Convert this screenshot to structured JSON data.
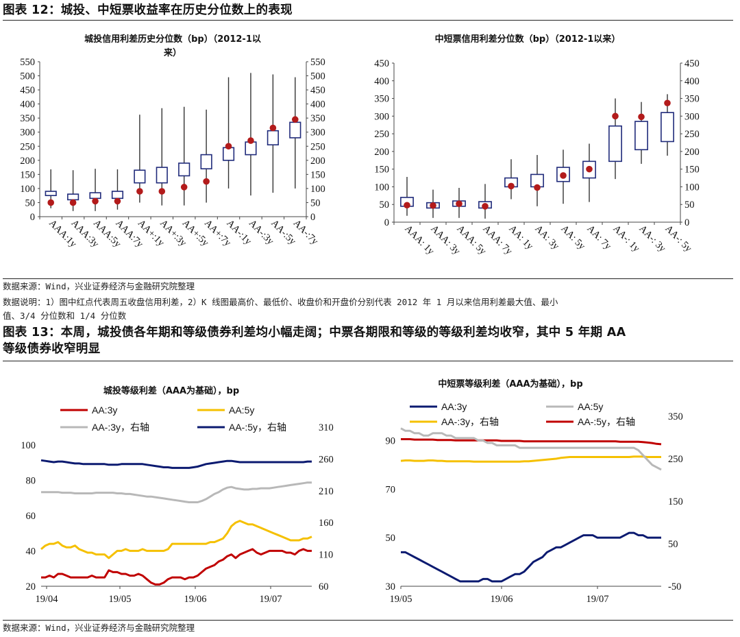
{
  "fig12_title": "图表 12：城投、中短票收益率在历史分位数上的表现",
  "fig12_source": "数据来源：Wind，兴业证券经济与金融研究院整理",
  "fig12_note_line1": "数据说明：1）图中红点代表周五收盘信用利差，2）K 线图最高价、最低价、收盘价和开盘价分别代表 2012 年 1 月以来信用利差最大值、最小",
  "fig12_note_line2": "值、3/4 分位数和 1/4 分位数",
  "fig13_title_line1": "图表 13：本周，城投债各年期和等级债券利差均小幅走阔；中票各期限和等级的等级利差均收窄，其中 5 年期 AA",
  "fig13_title_line2": "等级债券收窄明显",
  "fig13_source": "数据来源：Wind，兴业证券经济与金融研究院整理",
  "colors": {
    "box": "#1f2a7a",
    "dot": "#b31b1b",
    "whisker": "#333333",
    "red": "#c00000",
    "yellow": "#f5c000",
    "gray": "#b8b8b8",
    "navy": "#0b1a70"
  },
  "chart_data": [
    {
      "type": "box",
      "title_line1": "城投信用利差历史分位数（bp）（2012-1以",
      "title_line2": "来）",
      "ylim": [
        0,
        550
      ],
      "yticks": [
        0,
        50,
        100,
        150,
        200,
        250,
        300,
        350,
        400,
        450,
        500,
        550
      ],
      "categories": [
        "AAA:1y",
        "AAA:3y",
        "AAA:5y",
        "AAA:7y",
        "AA+:1y",
        "AA+:3y",
        "AA+:5y",
        "AA+:7y",
        "AA-:1y",
        "AA-:3y",
        "AA-:5y",
        "AA-:7y"
      ],
      "max": [
        168,
        165,
        170,
        168,
        362,
        385,
        390,
        380,
        495,
        510,
        505,
        495
      ],
      "min": [
        30,
        20,
        20,
        25,
        50,
        40,
        40,
        50,
        100,
        75,
        85,
        100
      ],
      "q3": [
        90,
        80,
        85,
        90,
        165,
        175,
        190,
        220,
        245,
        265,
        305,
        335
      ],
      "q1": [
        75,
        60,
        65,
        65,
        120,
        120,
        145,
        170,
        200,
        220,
        255,
        280
      ],
      "current": [
        50,
        50,
        55,
        55,
        90,
        90,
        105,
        125,
        250,
        270,
        315,
        345
      ]
    },
    {
      "type": "box",
      "title_line1": "中短票信用利差分位数（bp）（2012-1以来）",
      "ylim": [
        0,
        450
      ],
      "yticks": [
        0,
        50,
        100,
        150,
        200,
        250,
        300,
        350,
        400,
        450
      ],
      "categories": [
        "AAA: 1y",
        "AAA: 3y",
        "AAA: 5y",
        "AAA: 7y",
        "AA: 1y",
        "AA: 3y",
        "AA: 5y",
        "AA: 7y",
        "AA-: 1y",
        "AA-: 3y",
        "AA-: 5y"
      ],
      "max": [
        128,
        92,
        97,
        108,
        178,
        190,
        205,
        222,
        350,
        340,
        362
      ],
      "min": [
        18,
        12,
        12,
        10,
        65,
        45,
        52,
        57,
        122,
        165,
        188
      ],
      "q3": [
        70,
        55,
        60,
        58,
        125,
        135,
        155,
        172,
        272,
        285,
        310
      ],
      "q1": [
        45,
        40,
        45,
        40,
        100,
        100,
        115,
        125,
        172,
        205,
        228
      ],
      "current": [
        48,
        47,
        52,
        45,
        102,
        98,
        132,
        150,
        300,
        298,
        337
      ]
    },
    {
      "type": "line",
      "title": "城投等级利差（AAA为基础），bp",
      "x_ticks": [
        "19/04",
        "19/05",
        "19/06",
        "19/07"
      ],
      "ylim_left": [
        20,
        110
      ],
      "yticks_left": [
        20,
        40,
        60,
        80,
        100
      ],
      "ylim_right": [
        60,
        310
      ],
      "yticks_right": [
        60,
        110,
        160,
        210,
        260,
        310
      ],
      "series": [
        {
          "name": "AA:3y",
          "axis": "left",
          "color": "#c00000",
          "values": [
            25,
            25,
            26,
            25,
            27,
            27,
            26,
            25,
            25,
            25,
            25,
            25,
            26,
            25,
            25,
            25,
            29,
            28,
            28,
            27,
            27,
            26,
            26,
            27,
            26,
            24,
            22,
            21,
            21,
            22,
            24,
            25,
            25,
            25,
            24,
            25,
            25,
            26,
            28,
            30,
            31,
            32,
            34,
            35,
            37,
            38,
            36,
            38,
            39,
            40,
            41,
            39,
            38,
            39,
            40,
            40,
            40,
            40,
            39,
            39,
            38,
            40,
            41,
            40,
            40
          ]
        },
        {
          "name": "AA:5y",
          "axis": "left",
          "color": "#f5c000",
          "values": [
            41,
            43,
            44,
            44,
            45,
            43,
            42,
            42,
            43,
            41,
            40,
            39,
            39,
            38,
            38,
            38,
            36,
            38,
            40,
            40,
            41,
            40,
            40,
            40,
            41,
            40,
            40,
            40,
            40,
            40,
            41,
            44,
            44,
            44,
            44,
            44,
            44,
            44,
            44,
            44,
            45,
            45,
            46,
            47,
            50,
            54,
            56,
            57,
            56,
            55,
            55,
            54,
            53,
            52,
            51,
            50,
            49,
            48,
            47,
            46,
            46,
            46,
            47,
            47,
            48
          ]
        },
        {
          "name": "AA-:3y，右轴",
          "axis": "right",
          "color": "#b8b8b8",
          "values": [
            208,
            208,
            208,
            208,
            208,
            207,
            207,
            207,
            206,
            206,
            206,
            206,
            206,
            207,
            207,
            207,
            207,
            207,
            206,
            206,
            205,
            205,
            204,
            203,
            202,
            201,
            201,
            200,
            199,
            198,
            197,
            196,
            195,
            194,
            193,
            192,
            192,
            192,
            194,
            197,
            201,
            205,
            208,
            212,
            215,
            216,
            214,
            213,
            212,
            212,
            213,
            213,
            214,
            214,
            214,
            215,
            216,
            217,
            218,
            219,
            220,
            221,
            222,
            223,
            223
          ]
        },
        {
          "name": "AA-:5y，右轴",
          "axis": "right",
          "color": "#0b1a70",
          "values": [
            258,
            257,
            256,
            255,
            256,
            256,
            255,
            254,
            253,
            253,
            252,
            252,
            252,
            252,
            252,
            252,
            251,
            251,
            251,
            252,
            252,
            252,
            252,
            252,
            252,
            251,
            250,
            249,
            248,
            247,
            247,
            246,
            246,
            246,
            246,
            246,
            247,
            248,
            250,
            252,
            253,
            254,
            255,
            256,
            257,
            257,
            256,
            255,
            255,
            255,
            255,
            255,
            255,
            255,
            255,
            255,
            255,
            255,
            255,
            255,
            255,
            255,
            255,
            256,
            256
          ]
        }
      ]
    },
    {
      "type": "line",
      "title": "中短票等级利差（AAA为基础），bp",
      "x_ticks": [
        "19/05",
        "19/06",
        "19/07"
      ],
      "ylim_left": [
        30,
        100
      ],
      "yticks_left": [
        30,
        50,
        70,
        90
      ],
      "ylim_right": [
        -50,
        350
      ],
      "yticks_right": [
        -50,
        50,
        150,
        250,
        350
      ],
      "series": [
        {
          "name": "AA:3y",
          "axis": "left",
          "color": "#0b1a70",
          "values": [
            44,
            44,
            43,
            42,
            41,
            40,
            39,
            38,
            37,
            36,
            35,
            34,
            33,
            32,
            32,
            32,
            32,
            32,
            33,
            33,
            32,
            32,
            32,
            33,
            34,
            35,
            35,
            36,
            38,
            40,
            41,
            42,
            44,
            45,
            46,
            46,
            47,
            48,
            49,
            50,
            51,
            51,
            51,
            50,
            50,
            50,
            50,
            50,
            50,
            51,
            52,
            52,
            51,
            51,
            50,
            50,
            50,
            50
          ]
        },
        {
          "name": "AA:5y",
          "axis": "left",
          "color": "#b8b8b8",
          "values": [
            95,
            94,
            94,
            93,
            93,
            92,
            92,
            93,
            93,
            93,
            92,
            92,
            91,
            91,
            91,
            91,
            91,
            90,
            90,
            89,
            89,
            88,
            88,
            88,
            88,
            88,
            87,
            87,
            87,
            87,
            87,
            87,
            87,
            87,
            87,
            87,
            87,
            87,
            87,
            87,
            87,
            87,
            87,
            87,
            87,
            87,
            87,
            87,
            87,
            87,
            87,
            87,
            86,
            84,
            82,
            80,
            79,
            78
          ]
        },
        {
          "name": "AA-:3y，右轴",
          "axis": "right",
          "color": "#f5c000",
          "values": [
            245,
            246,
            246,
            245,
            245,
            245,
            246,
            246,
            245,
            245,
            244,
            244,
            244,
            244,
            244,
            244,
            243,
            243,
            243,
            243,
            243,
            243,
            243,
            243,
            243,
            243,
            243,
            244,
            244,
            245,
            246,
            247,
            248,
            249,
            250,
            252,
            253,
            254,
            254,
            254,
            254,
            254,
            254,
            254,
            254,
            254,
            254,
            254,
            254,
            254,
            254,
            255,
            255,
            255,
            254,
            254,
            254,
            254
          ]
        },
        {
          "name": "AA-:5y，右轴",
          "axis": "right",
          "color": "#c00000",
          "values": [
            296,
            296,
            296,
            295,
            295,
            295,
            295,
            295,
            294,
            294,
            294,
            294,
            293,
            293,
            293,
            293,
            293,
            293,
            293,
            293,
            293,
            293,
            292,
            292,
            292,
            292,
            292,
            291,
            291,
            291,
            291,
            291,
            291,
            291,
            291,
            291,
            291,
            291,
            291,
            291,
            291,
            291,
            291,
            291,
            291,
            291,
            291,
            291,
            290,
            290,
            290,
            290,
            290,
            289,
            288,
            287,
            285,
            284
          ]
        }
      ]
    }
  ]
}
